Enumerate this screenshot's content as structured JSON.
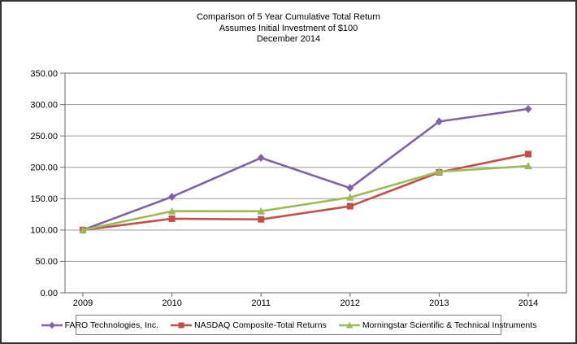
{
  "header": {
    "title_lines": [
      "Comparison of 5 Year Cumulative Total Return",
      "Assumes Initial Investment of $100",
      "December 2014"
    ]
  },
  "chart_data": {
    "type": "line",
    "title": "Comparison of 5 Year Cumulative Total Return",
    "subtitle": "Assumes Initial Investment of $100",
    "date_label": "December 2014",
    "categories": [
      "2009",
      "2010",
      "2011",
      "2012",
      "2013",
      "2014"
    ],
    "series": [
      {
        "name": "FARO Technologies, Inc.",
        "color": "#8064A2",
        "marker": "diamond",
        "values": [
          100,
          153,
          215,
          167,
          273,
          293
        ]
      },
      {
        "name": "NASDAQ Composite-Total Returns",
        "color": "#C0504D",
        "marker": "square",
        "values": [
          100,
          118,
          117,
          138,
          192,
          221
        ]
      },
      {
        "name": "Morningstar Scientific & Technical Instruments",
        "color": "#9BBB59",
        "marker": "triangle",
        "values": [
          100,
          130,
          130,
          152,
          193,
          202
        ]
      }
    ],
    "xlabel": "",
    "ylabel": "",
    "ylim": [
      0,
      350
    ],
    "ytick_step": 50,
    "ytick_labels": [
      "0.00",
      "50.00",
      "100.00",
      "150.00",
      "200.00",
      "250.00",
      "300.00",
      "350.00"
    ],
    "grid": true,
    "legend_position": "bottom",
    "colors": {
      "gridline": "#999999",
      "plot_border": "#808080",
      "axis_text": "#000000",
      "legend_border": "#808080",
      "outer_border": "#333333"
    }
  }
}
